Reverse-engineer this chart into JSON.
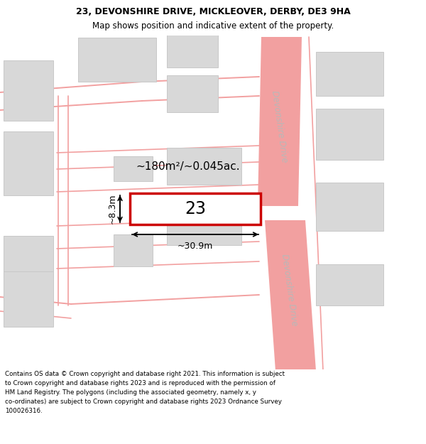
{
  "title_line1": "23, DEVONSHIRE DRIVE, MICKLEOVER, DERBY, DE3 9HA",
  "title_line2": "Map shows position and indicative extent of the property.",
  "footer_line1": "Contains OS data © Crown copyright and database right 2021. This information is subject",
  "footer_line2": "to Crown copyright and database rights 2023 and is reproduced with the permission of",
  "footer_line3": "HM Land Registry. The polygons (including the associated geometry, namely x, y",
  "footer_line4": "co-ordinates) are subject to Crown copyright and database rights 2023 Ordnance Survey",
  "footer_line5": "100026316.",
  "background_color": "#ffffff",
  "road_color": "#f2a0a0",
  "building_color": "#d8d8d8",
  "building_edge": "#c8c8c8",
  "highlight_color": "#cc0000",
  "road_label": "Devonshire Drive",
  "plot_label": "23",
  "area_label": "~180m²/~0.045ac.",
  "width_label": "~30.9m",
  "height_label": "~8.3m",
  "title_fontsize": 9,
  "subtitle_fontsize": 8.5,
  "footer_fontsize": 6.3,
  "area_label_fontsize": 11,
  "plot_num_fontsize": 17,
  "dim_fontsize": 9,
  "road_text_fontsize": 8.5,
  "road_text_color": "#b8b8b8"
}
